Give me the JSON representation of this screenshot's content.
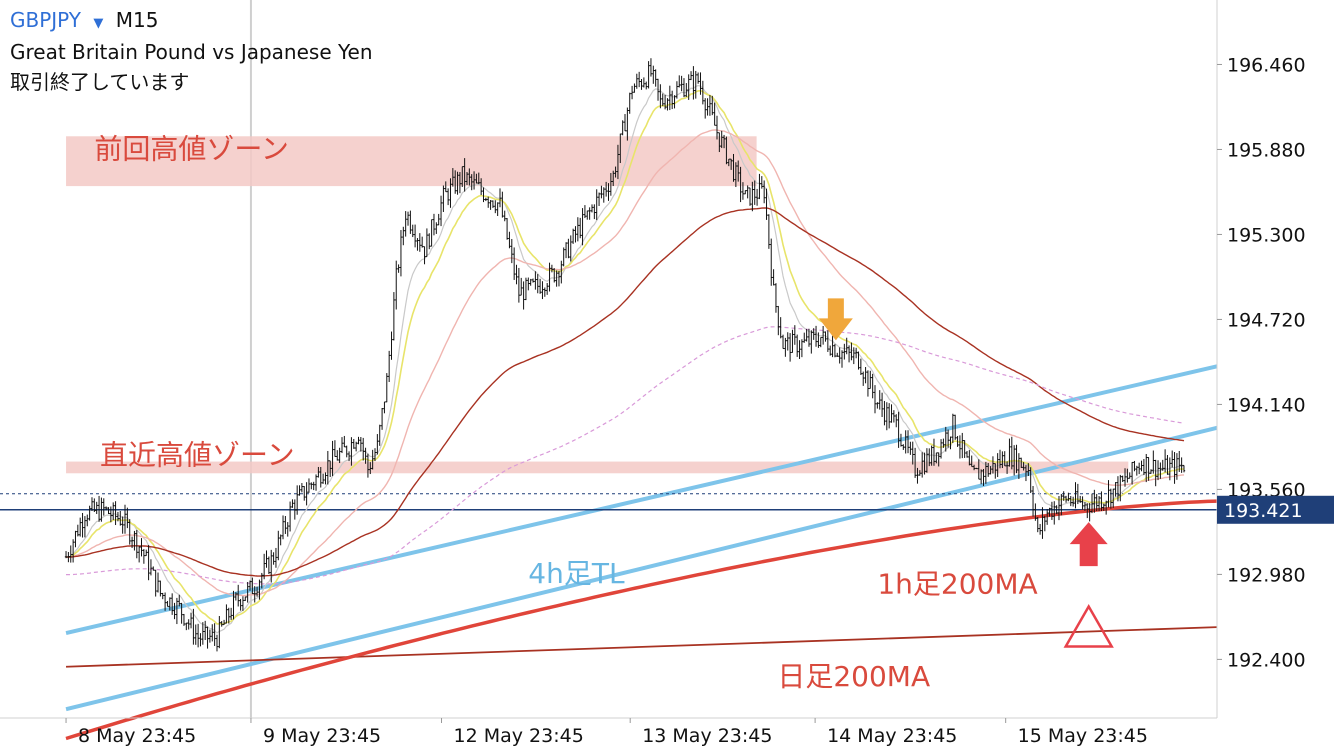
{
  "header": {
    "symbol": "GBPJPY",
    "dropdown_glyph": "▼",
    "timeframe": "M15",
    "description": "Great Britain Pound vs Japanese Yen",
    "status": "取引終了しています"
  },
  "colors": {
    "up_down_bars": "#111111",
    "ma_fast": "#e8e46a",
    "ma_mid": "#f0b5b0",
    "ma_slow": "#a83222",
    "ma_1h200": "#e0453a",
    "trendline": "#7ec4ea",
    "zone": "#f3c9c6",
    "label_red": "#d94a3d",
    "label_blue": "#67b6e2",
    "arrow_orange": "#f0a73b",
    "arrow_red": "#e8414a",
    "current_price_bg": "#1f3f78",
    "dotted_pink": "#d99ad9"
  },
  "chart_data": {
    "type": "candlestick",
    "symbol": "GBPJPY",
    "timeframe": "M15",
    "x_tick_labels": [
      "8 May 23:45",
      "9 May 23:45",
      "12 May 23:45",
      "13 May 23:45",
      "14 May 23:45",
      "15 May 23:45"
    ],
    "y_tick_labels": [
      "196.460",
      "195.880",
      "195.300",
      "194.720",
      "194.140",
      "193.560",
      "192.980",
      "192.400"
    ],
    "y_ticks": [
      196.46,
      195.88,
      195.3,
      194.72,
      194.14,
      193.56,
      192.98,
      192.4
    ],
    "ylim": [
      192.0,
      196.9
    ],
    "current_price": 193.421,
    "current_price_label": "193.421",
    "bid_line": 193.53,
    "price_path": [
      {
        "x": 0.0,
        "y": 193.1
      },
      {
        "x": 0.1,
        "y": 193.4
      },
      {
        "x": 0.2,
        "y": 193.42
      },
      {
        "x": 0.3,
        "y": 193.35
      },
      {
        "x": 0.4,
        "y": 193.15
      },
      {
        "x": 0.5,
        "y": 192.85
      },
      {
        "x": 0.6,
        "y": 192.75
      },
      {
        "x": 0.7,
        "y": 192.55
      },
      {
        "x": 0.8,
        "y": 192.55
      },
      {
        "x": 0.9,
        "y": 192.8
      },
      {
        "x": 1.0,
        "y": 192.9
      },
      {
        "x": 1.1,
        "y": 193.1
      },
      {
        "x": 1.2,
        "y": 193.45
      },
      {
        "x": 1.3,
        "y": 193.6
      },
      {
        "x": 1.4,
        "y": 193.75
      },
      {
        "x": 1.5,
        "y": 193.85
      },
      {
        "x": 1.55,
        "y": 193.95
      },
      {
        "x": 1.6,
        "y": 193.7
      },
      {
        "x": 1.65,
        "y": 193.85
      },
      {
        "x": 1.7,
        "y": 194.3
      },
      {
        "x": 1.75,
        "y": 195.0
      },
      {
        "x": 1.8,
        "y": 195.45
      },
      {
        "x": 1.9,
        "y": 195.2
      },
      {
        "x": 2.0,
        "y": 195.55
      },
      {
        "x": 2.1,
        "y": 195.7
      },
      {
        "x": 2.2,
        "y": 195.6
      },
      {
        "x": 2.3,
        "y": 195.5
      },
      {
        "x": 2.4,
        "y": 194.9
      },
      {
        "x": 2.5,
        "y": 194.95
      },
      {
        "x": 2.6,
        "y": 195.05
      },
      {
        "x": 2.7,
        "y": 195.3
      },
      {
        "x": 2.8,
        "y": 195.5
      },
      {
        "x": 2.9,
        "y": 195.7
      },
      {
        "x": 3.0,
        "y": 196.3
      },
      {
        "x": 3.1,
        "y": 196.4
      },
      {
        "x": 3.15,
        "y": 196.2
      },
      {
        "x": 3.25,
        "y": 196.3
      },
      {
        "x": 3.35,
        "y": 196.35
      },
      {
        "x": 3.45,
        "y": 196.0
      },
      {
        "x": 3.5,
        "y": 195.85
      },
      {
        "x": 3.6,
        "y": 195.55
      },
      {
        "x": 3.7,
        "y": 195.6
      },
      {
        "x": 3.75,
        "y": 194.9
      },
      {
        "x": 3.8,
        "y": 194.55
      },
      {
        "x": 3.9,
        "y": 194.55
      },
      {
        "x": 4.0,
        "y": 194.6
      },
      {
        "x": 4.1,
        "y": 194.5
      },
      {
        "x": 4.2,
        "y": 194.45
      },
      {
        "x": 4.3,
        "y": 194.15
      },
      {
        "x": 4.4,
        "y": 194.0
      },
      {
        "x": 4.5,
        "y": 193.7
      },
      {
        "x": 4.6,
        "y": 193.8
      },
      {
        "x": 4.7,
        "y": 194.0
      },
      {
        "x": 4.8,
        "y": 193.65
      },
      {
        "x": 4.9,
        "y": 193.7
      },
      {
        "x": 5.0,
        "y": 193.8
      },
      {
        "x": 5.1,
        "y": 193.7
      },
      {
        "x": 5.15,
        "y": 193.25
      },
      {
        "x": 5.2,
        "y": 193.4
      },
      {
        "x": 5.3,
        "y": 193.5
      },
      {
        "x": 5.4,
        "y": 193.45
      },
      {
        "x": 5.5,
        "y": 193.5
      },
      {
        "x": 5.6,
        "y": 193.6
      },
      {
        "x": 5.7,
        "y": 193.75
      },
      {
        "x": 5.8,
        "y": 193.7
      },
      {
        "x": 5.9,
        "y": 193.72
      }
    ],
    "zones": [
      {
        "label": "前回高値ゾーン",
        "y_low": 195.63,
        "y_high": 195.97,
        "x_start": 0.0,
        "x_end": 3.66
      },
      {
        "label": "直近高値ゾーン",
        "y_low": 193.67,
        "y_high": 193.75,
        "x_start": 0.0,
        "x_end": 5.63
      }
    ],
    "lines": [
      {
        "name": "4h足TL upper",
        "points": [
          [
            0.0,
            192.58
          ],
          [
            6.1,
            194.4
          ]
        ]
      },
      {
        "name": "4h足TL lower",
        "points": [
          [
            0.0,
            192.06
          ],
          [
            6.1,
            193.98
          ]
        ]
      },
      {
        "name": "日足200MA",
        "points": [
          [
            0.0,
            192.35
          ],
          [
            6.1,
            192.62
          ]
        ]
      }
    ],
    "annotations": [
      {
        "text": "前回高値ゾーン",
        "x": 0.15,
        "y": 195.82
      },
      {
        "text": "直近高値ゾーン",
        "x": 0.18,
        "y": 193.73
      },
      {
        "text": "4h足TL",
        "x": 2.45,
        "y": 192.92
      },
      {
        "text": "1h足200MA",
        "x": 4.3,
        "y": 192.85
      },
      {
        "text": "日足200MA",
        "x": 3.77,
        "y": 192.22
      }
    ]
  }
}
